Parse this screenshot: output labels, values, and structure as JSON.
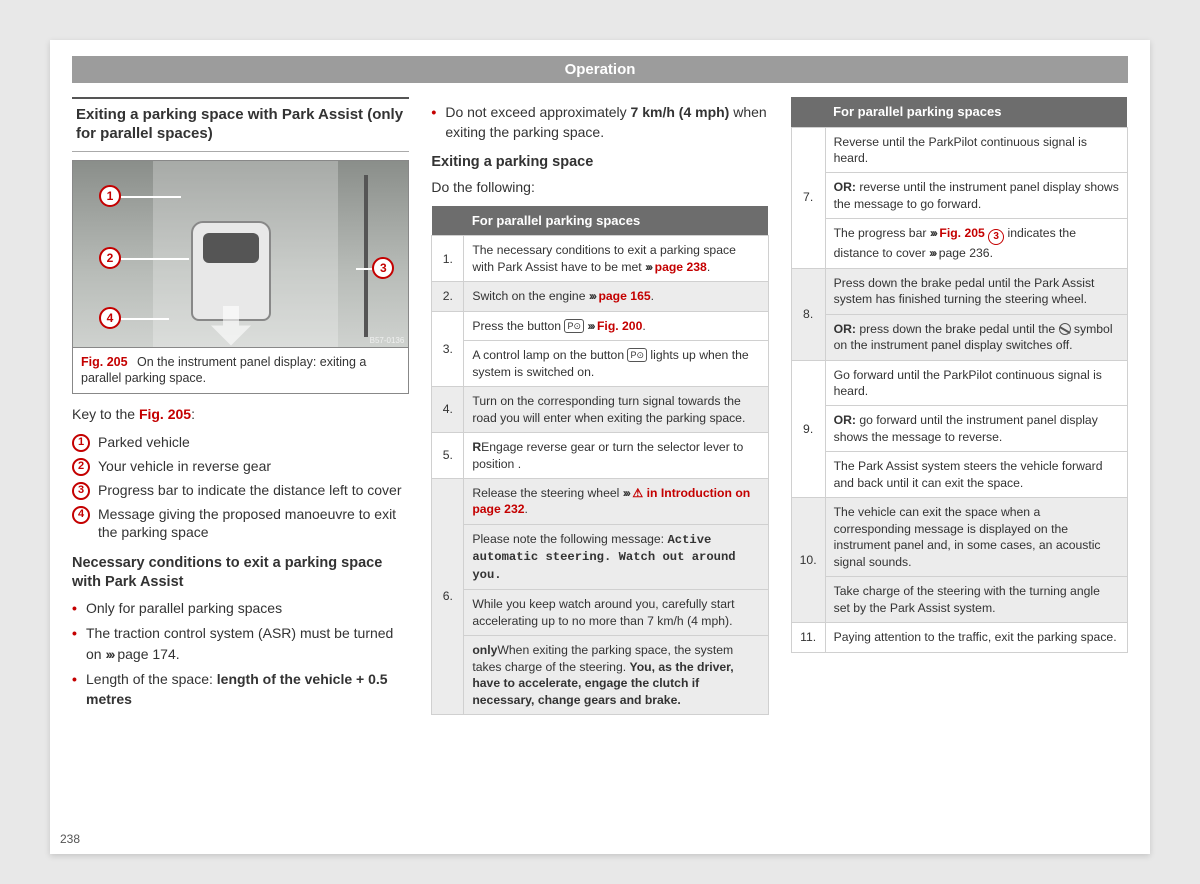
{
  "header": "Operation",
  "page_number": "238",
  "col1": {
    "title": "Exiting a parking space with Park Assist (only for parallel spaces)",
    "figure": {
      "code": "B57-0136",
      "ref": "Fig. 205",
      "caption": "On the instrument panel display: exiting a parallel parking space.",
      "callouts": [
        "1",
        "2",
        "3",
        "4"
      ]
    },
    "key_intro_a": "Key to the ",
    "key_intro_ref": "Fig. 205",
    "key_intro_b": ":",
    "key": [
      {
        "n": "1",
        "t": "Parked vehicle"
      },
      {
        "n": "2",
        "t": "Your vehicle in reverse gear"
      },
      {
        "n": "3",
        "t": "Progress bar to indicate the distance left to cover"
      },
      {
        "n": "4",
        "t": "Message giving the proposed manoeuvre to exit the parking space"
      }
    ],
    "cond_h": "Necessary conditions to exit a parking space with Park Assist",
    "cond": [
      {
        "pre": "Only for parallel parking spaces"
      },
      {
        "pre": "The traction control system (ASR) must be turned on ",
        "link": "page 174",
        "suf": "."
      },
      {
        "pre": "Length of the space: ",
        "bold": "length of the vehicle + 0.5 metres"
      }
    ]
  },
  "col2": {
    "top_a": "Do not exceed approximately ",
    "top_bold": "7 km/h (4 mph)",
    "top_b": " when exiting the parking space.",
    "sub_h": "Exiting a parking space",
    "sub_p": "Do the following:",
    "th": "For parallel parking spaces",
    "rows": [
      {
        "n": "1.",
        "cells": [
          {
            "a": "The necessary conditions to exit a parking space with Park Assist have to be met ",
            "link": "page 238",
            "b": "."
          }
        ]
      },
      {
        "n": "2.",
        "cells": [
          {
            "a": "Switch on the engine ",
            "link": "page 165",
            "b": "."
          }
        ]
      },
      {
        "n": "3.",
        "cells": [
          {
            "a": "Press the button ",
            "icon": "p",
            "link": "Fig. 200",
            "b": "."
          },
          {
            "a": "A control lamp on the button ",
            "icon": "p",
            "b": " lights up when the system is switched on."
          }
        ]
      },
      {
        "n": "4.",
        "cells": [
          {
            "a": "Turn on the corresponding turn signal towards the road you will enter when exiting the parking space."
          }
        ]
      },
      {
        "n": "5.",
        "cells": [
          {
            "a": "Engage reverse gear or turn the selector lever to position ",
            "bold": "R",
            "b": "."
          }
        ]
      },
      {
        "n": "6.",
        "cells": [
          {
            "a": "Release the steering wheel ",
            "warn": true,
            "link": "in Introduction on page 232",
            "b": "."
          },
          {
            "a": "Please note the following message: ",
            "mono": "Active automatic steering. Watch out around you."
          },
          {
            "a": "While you keep watch around you, carefully start accelerating up to no more than 7 km/h (4 mph)."
          },
          {
            "a": "When exiting the parking space, the system ",
            "bold": "only",
            "mid": " takes charge of the steering. ",
            "bold2": "You, as the driver, have to accelerate, engage the clutch if necessary, change gears and brake."
          }
        ]
      }
    ]
  },
  "col3": {
    "th": "For parallel parking spaces",
    "rows": [
      {
        "n": "7.",
        "cells": [
          {
            "a": "Reverse until the ParkPilot continuous signal is heard."
          },
          {
            "bold": "OR:",
            "a": " reverse until the instrument panel display shows the message to go forward."
          },
          {
            "a": "The progress bar ",
            "link": "Fig. 205",
            "circ": "3",
            "mid": " indicates the distance to cover ",
            "link2": "page 236",
            "b": "."
          }
        ]
      },
      {
        "n": "8.",
        "cells": [
          {
            "a": "Press down the brake pedal until the Park Assist system has finished turning the steering wheel."
          },
          {
            "bold": "OR:",
            "a": " press down the brake pedal until the ",
            "no": true,
            "b": " symbol on the instrument panel display switches off."
          }
        ]
      },
      {
        "n": "9.",
        "cells": [
          {
            "a": "Go forward until the ParkPilot continuous signal is heard."
          },
          {
            "bold": "OR:",
            "a": " go forward until the instrument panel display shows the message to reverse."
          },
          {
            "a": "The Park Assist system steers the vehicle forward and back until it can exit the space."
          }
        ]
      },
      {
        "n": "10.",
        "cells": [
          {
            "a": "The vehicle can exit the space when a corresponding message is displayed on the instrument panel and, in some cases, an acoustic signal sounds."
          },
          {
            "a": "Take charge of the steering with the turning angle set by the Park Assist system."
          }
        ]
      },
      {
        "n": "11.",
        "cells": [
          {
            "a": "Paying attention to the traffic, exit the parking space."
          }
        ]
      }
    ]
  }
}
